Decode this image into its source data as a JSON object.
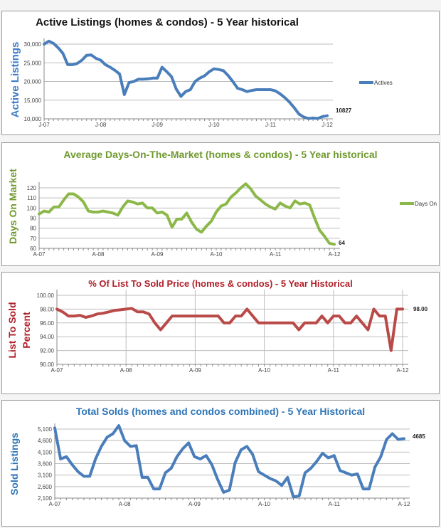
{
  "chart_data": [
    {
      "type": "line",
      "title": "Active Listings (homes & condos) - 5 Year historical",
      "ylabel": "Active Listings",
      "xlabel": "",
      "ylim": [
        10000,
        30000
      ],
      "yticks": [
        "10,000",
        "15,000",
        "20,000",
        "25,000",
        "30,000"
      ],
      "xticks": [
        "J-07",
        "J-08",
        "J-09",
        "J-10",
        "J-11",
        "J-12"
      ],
      "grid": "horizontal",
      "legend": "right",
      "color": "#4a7ebb",
      "series": [
        {
          "name": "Actives",
          "values": [
            30000,
            30800,
            30200,
            29000,
            27500,
            24500,
            24500,
            24800,
            25700,
            27000,
            27100,
            26200,
            25700,
            24500,
            23800,
            23000,
            22000,
            16500,
            19700,
            20000,
            20600,
            20600,
            20700,
            20900,
            20900,
            23800,
            22600,
            21300,
            18000,
            16000,
            17300,
            17800,
            20000,
            20900,
            21500,
            22600,
            23400,
            23200,
            22900,
            21600,
            20000,
            18200,
            17800,
            17300,
            17600,
            17800,
            17800,
            17800,
            17800,
            17500,
            16700,
            15700,
            14500,
            13000,
            11300,
            10500,
            10100,
            10200,
            10100,
            10600,
            10827
          ]
        }
      ],
      "end_label": "10827"
    },
    {
      "type": "line",
      "title": "Average Days-On-The-Market (homes & condos) - 5 Year historical",
      "ylabel": "Days On Market",
      "xlabel": "",
      "ylim": [
        60,
        120
      ],
      "yticks": [
        "60",
        "70",
        "80",
        "90",
        "100",
        "110",
        "120"
      ],
      "xticks": [
        "A-07",
        "A-08",
        "A-09",
        "A-10",
        "A-11",
        "A-12"
      ],
      "grid": "horizontal",
      "legend": "right",
      "color": "#8cb84a",
      "series": [
        {
          "name": "Days On",
          "values": [
            94,
            97,
            96,
            101,
            101,
            108,
            114,
            114,
            111,
            106,
            97,
            96,
            96,
            97,
            96,
            95,
            93,
            101,
            107,
            106,
            104,
            105,
            100,
            100,
            95,
            96,
            93,
            81,
            89,
            89,
            95,
            86,
            79,
            76,
            82,
            87,
            96,
            102,
            104,
            111,
            115,
            120,
            124,
            119,
            112,
            108,
            104,
            101,
            99,
            105,
            102,
            100,
            107,
            104,
            105,
            103,
            90,
            78,
            72,
            65,
            64
          ]
        }
      ],
      "end_label": "64"
    },
    {
      "type": "line",
      "title": "% Of List To Sold Price (homes & condos) - 5 Year Historical",
      "ylabel": "List To Sold Percent",
      "xlabel": "",
      "ylim": [
        90,
        100
      ],
      "yticks": [
        "90.00",
        "92.00",
        "94.00",
        "96.00",
        "98.00",
        "100.00"
      ],
      "xticks": [
        "A-07",
        "A-08",
        "A-09",
        "A-10",
        "A-11",
        "A-12"
      ],
      "grid": "both",
      "legend": "none",
      "color": "#b94a48",
      "series": [
        {
          "values": [
            98,
            97.6,
            97,
            97,
            97.1,
            96.8,
            97,
            97.3,
            97.4,
            97.6,
            97.8,
            97.9,
            98,
            98.1,
            97.6,
            97.6,
            97.3,
            96,
            95,
            96,
            97,
            97,
            97,
            97,
            97,
            97,
            97,
            97,
            97,
            96,
            96,
            97,
            97,
            98,
            97,
            96,
            96,
            96,
            96,
            96,
            96,
            96,
            95,
            96,
            96,
            96,
            97,
            96,
            97,
            97,
            96,
            96,
            97,
            96,
            95,
            98,
            97,
            97,
            92,
            98,
            98
          ]
        }
      ],
      "end_label": "98.00"
    },
    {
      "type": "line",
      "title": "Total Solds (homes and condos combined) - 5 Year Historical",
      "ylabel": "Sold Listings",
      "xlabel": "",
      "ylim": [
        2100,
        5100
      ],
      "yticks": [
        "2,100",
        "2,600",
        "3,100",
        "3,600",
        "4,100",
        "4,600",
        "5,100"
      ],
      "xticks": [
        "A-07",
        "A-08",
        "A-09",
        "A-10",
        "A-11",
        "A-12"
      ],
      "grid": "horizontal",
      "legend": "none",
      "color": "#4a7ebb",
      "series": [
        {
          "values": [
            5150,
            3800,
            3900,
            3550,
            3250,
            3050,
            3050,
            3800,
            4350,
            4750,
            4900,
            5250,
            4600,
            4350,
            4380,
            3000,
            3000,
            2500,
            2500,
            3200,
            3400,
            3900,
            4250,
            4500,
            3900,
            3800,
            3950,
            3550,
            2900,
            2350,
            2450,
            3650,
            4200,
            4350,
            4000,
            3250,
            3100,
            2950,
            2850,
            2650,
            3000,
            2150,
            2200,
            3200,
            3400,
            3700,
            4050,
            3850,
            3950,
            3300,
            3200,
            3100,
            3150,
            2500,
            2500,
            3450,
            3900,
            4650,
            4900,
            4650,
            4685
          ]
        }
      ],
      "end_label": "4685"
    }
  ]
}
